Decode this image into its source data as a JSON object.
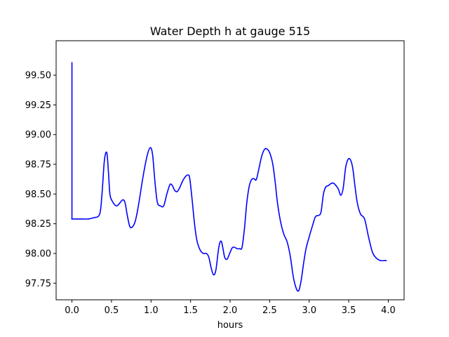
{
  "chart_data": {
    "type": "line",
    "title": "Water Depth h at gauge 515",
    "xlabel": "hours",
    "ylabel": "",
    "xlim": [
      -0.2,
      4.2
    ],
    "ylim": [
      97.61,
      99.79
    ],
    "x_ticks": [
      0.0,
      0.5,
      1.0,
      1.5,
      2.0,
      2.5,
      3.0,
      3.5,
      4.0
    ],
    "x_tick_labels": [
      "0.0",
      "0.5",
      "1.0",
      "1.5",
      "2.0",
      "2.5",
      "3.0",
      "3.5",
      "4.0"
    ],
    "y_ticks": [
      97.75,
      98.0,
      98.25,
      98.5,
      98.75,
      99.0,
      99.25,
      99.5
    ],
    "y_tick_labels": [
      "97.75",
      "98.00",
      "98.25",
      "98.50",
      "98.75",
      "99.00",
      "99.25",
      "99.50"
    ],
    "grid": false,
    "legend": "none",
    "series": [
      {
        "color": "#0000ff",
        "x": [
          0.0,
          0.0,
          0.005,
          0.1,
          0.2,
          0.27,
          0.35,
          0.38,
          0.41,
          0.44,
          0.46,
          0.48,
          0.51,
          0.56,
          0.6,
          0.64,
          0.67,
          0.7,
          0.73,
          0.76,
          0.8,
          0.84,
          0.9,
          0.95,
          0.99,
          1.02,
          1.05,
          1.08,
          1.12,
          1.16,
          1.2,
          1.24,
          1.27,
          1.3,
          1.33,
          1.36,
          1.4,
          1.44,
          1.47,
          1.49,
          1.52,
          1.55,
          1.58,
          1.62,
          1.66,
          1.7,
          1.73,
          1.76,
          1.79,
          1.82,
          1.85,
          1.87,
          1.89,
          1.91,
          1.93,
          1.95,
          1.97,
          2.0,
          2.03,
          2.06,
          2.09,
          2.12,
          2.15,
          2.18,
          2.21,
          2.24,
          2.27,
          2.3,
          2.33,
          2.36,
          2.4,
          2.44,
          2.48,
          2.51,
          2.54,
          2.57,
          2.6,
          2.64,
          2.68,
          2.72,
          2.76,
          2.8,
          2.84,
          2.87,
          2.9,
          2.93,
          2.96,
          3.0,
          3.04,
          3.08,
          3.12,
          3.15,
          3.18,
          3.21,
          3.24,
          3.28,
          3.31,
          3.34,
          3.37,
          3.4,
          3.43,
          3.46,
          3.49,
          3.52,
          3.55,
          3.58,
          3.61,
          3.65,
          3.7,
          3.75,
          3.8,
          3.85,
          3.9,
          3.95,
          3.98
        ],
        "y": [
          99.61,
          98.29,
          98.29,
          98.29,
          98.29,
          98.3,
          98.33,
          98.5,
          98.78,
          98.85,
          98.7,
          98.5,
          98.44,
          98.4,
          98.42,
          98.45,
          98.43,
          98.32,
          98.23,
          98.22,
          98.27,
          98.4,
          98.65,
          98.82,
          98.89,
          98.83,
          98.6,
          98.43,
          98.4,
          98.4,
          98.5,
          98.58,
          98.57,
          98.53,
          98.52,
          98.55,
          98.61,
          98.65,
          98.66,
          98.63,
          98.45,
          98.25,
          98.11,
          98.03,
          98.0,
          98.0,
          97.97,
          97.88,
          97.82,
          97.86,
          98.02,
          98.09,
          98.1,
          98.04,
          97.97,
          97.95,
          97.96,
          98.01,
          98.05,
          98.05,
          98.04,
          98.04,
          98.05,
          98.2,
          98.42,
          98.56,
          98.62,
          98.63,
          98.62,
          98.7,
          98.82,
          98.88,
          98.87,
          98.83,
          98.75,
          98.6,
          98.42,
          98.26,
          98.16,
          98.1,
          97.98,
          97.8,
          97.7,
          97.69,
          97.78,
          97.92,
          98.04,
          98.14,
          98.23,
          98.31,
          98.32,
          98.35,
          98.5,
          98.56,
          98.57,
          98.59,
          98.59,
          98.57,
          98.54,
          98.49,
          98.55,
          98.72,
          98.79,
          98.79,
          98.72,
          98.56,
          98.42,
          98.33,
          98.29,
          98.14,
          98.01,
          97.96,
          97.94,
          97.94,
          97.94
        ]
      }
    ]
  }
}
